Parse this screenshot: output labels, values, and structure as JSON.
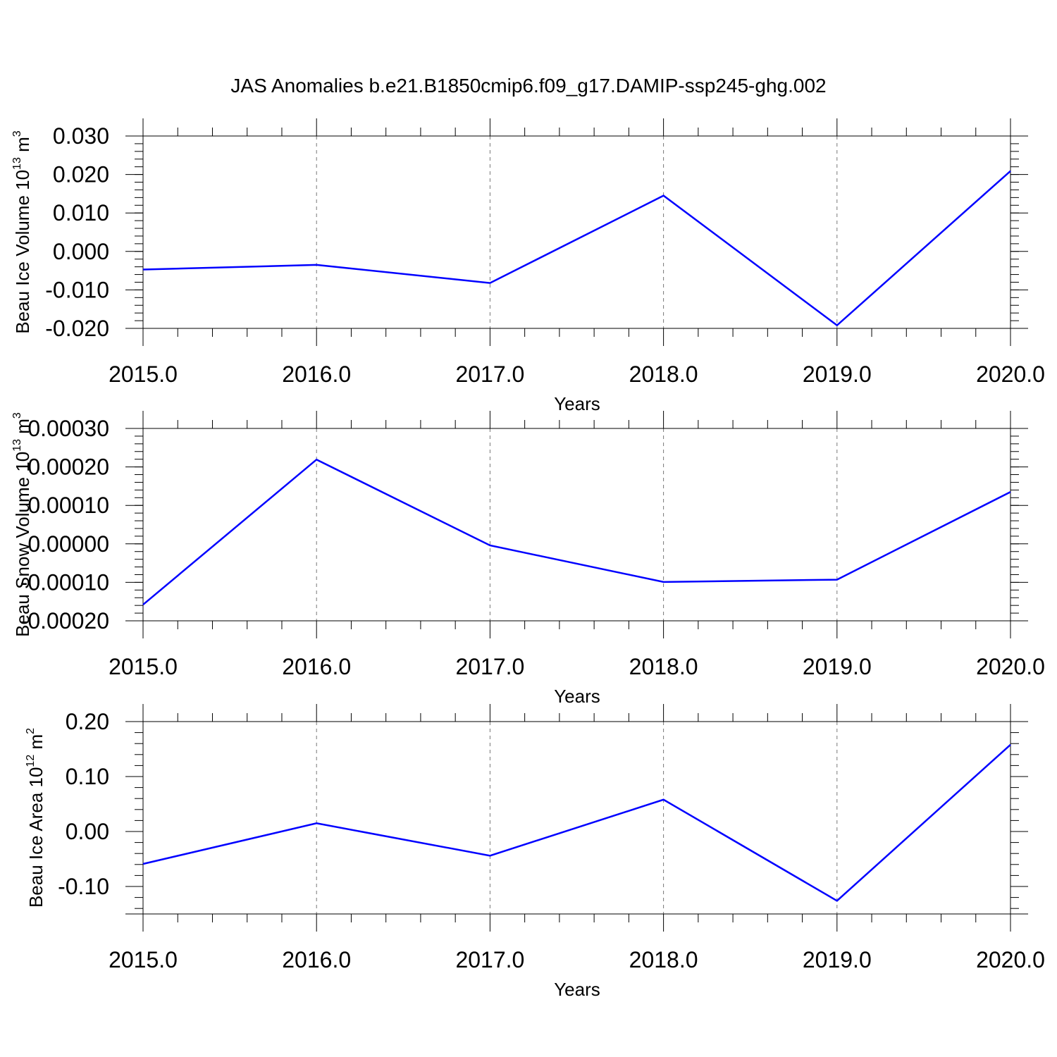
{
  "title": "JAS Anomalies b.e21.B1850cmip6.f09_g17.DAMIP-ssp245-ghg.002",
  "line_color": "#0000ff",
  "chart_data": [
    {
      "type": "line",
      "x": [
        2015,
        2016,
        2017,
        2018,
        2019,
        2020
      ],
      "x_tick_labels": [
        "2015.0",
        "2016.0",
        "2017.0",
        "2018.0",
        "2019.0",
        "2020.0"
      ],
      "xlabel": "Years",
      "ylabel": {
        "base": "Beau Ice Volume 10",
        "exp": "13",
        "unit": " m",
        "unit_exp": "3"
      },
      "y_ticks": [
        0.03,
        0.02,
        0.01,
        0.0,
        -0.01,
        -0.02
      ],
      "y_tick_labels": [
        "0.030",
        "0.020",
        "0.010",
        "0.000",
        "-0.010",
        "-0.020"
      ],
      "ylim": [
        -0.02,
        0.03
      ],
      "xlim": [
        2015,
        2020
      ],
      "grid": "vertical dashed",
      "values": [
        -0.0047,
        -0.0035,
        -0.0082,
        0.0145,
        -0.0192,
        0.0209
      ]
    },
    {
      "type": "line",
      "x": [
        2015,
        2016,
        2017,
        2018,
        2019,
        2020
      ],
      "x_tick_labels": [
        "2015.0",
        "2016.0",
        "2017.0",
        "2018.0",
        "2019.0",
        "2020.0"
      ],
      "xlabel": "Years",
      "ylabel": {
        "base": "Beau Snow Volume 10",
        "exp": "13",
        "unit": " m",
        "unit_exp": "3"
      },
      "y_ticks": [
        0.0003,
        0.0002,
        0.0001,
        0.0,
        -0.0001,
        -0.0002
      ],
      "y_tick_labels": [
        "0.00030",
        "0.00020",
        "0.00010",
        "0.00000",
        "-0.00010",
        "-0.00020"
      ],
      "ylim": [
        -0.0002,
        0.0003
      ],
      "xlim": [
        2015,
        2020
      ],
      "grid": "vertical dashed",
      "values": [
        -0.000158,
        0.000219,
        -4e-06,
        -9.9e-05,
        -9.3e-05,
        0.000135
      ]
    },
    {
      "type": "line",
      "x": [
        2015,
        2016,
        2017,
        2018,
        2019,
        2020
      ],
      "x_tick_labels": [
        "2015.0",
        "2016.0",
        "2017.0",
        "2018.0",
        "2019.0",
        "2020.0"
      ],
      "xlabel": "Years",
      "ylabel": {
        "base": "Beau Ice Area 10",
        "exp": "12",
        "unit": " m",
        "unit_exp": "2"
      },
      "y_ticks": [
        0.2,
        0.1,
        0.0,
        -0.1
      ],
      "y_tick_labels": [
        "0.20",
        "0.10",
        "0.00",
        "-0.10"
      ],
      "ylim": [
        -0.15,
        0.2
      ],
      "xlim": [
        2015,
        2020
      ],
      "grid": "vertical dashed",
      "values": [
        -0.059,
        0.015,
        -0.044,
        0.058,
        -0.126,
        0.158
      ]
    }
  ]
}
